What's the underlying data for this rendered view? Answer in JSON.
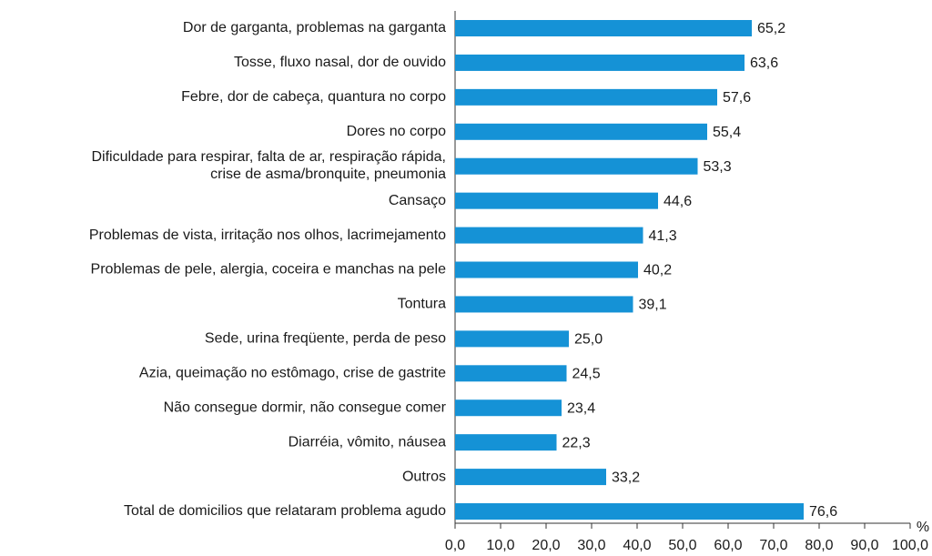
{
  "chart_data": {
    "type": "bar",
    "orientation": "horizontal",
    "categories": [
      "Dor de garganta, problemas na garganta",
      "Tosse, fluxo nasal, dor de ouvido",
      "Febre, dor de cabeça, quantura no corpo",
      "Dores no corpo",
      "Dificuldade para respirar, falta de ar, respiração rápida,\ncrise de asma/bronquite, pneumonia",
      "Cansaço",
      "Problemas de vista, irritação nos olhos, lacrimejamento",
      "Problemas de pele, alergia, coceira e manchas na pele",
      "Tontura",
      "Sede, urina freqüente, perda de peso",
      "Azia, queimação no estômago, crise de gastrite",
      "Não consegue dormir, não consegue comer",
      "Diarréia, vômito, náusea",
      "Outros",
      "Total de domicilios que relataram problema agudo"
    ],
    "values": [
      65.2,
      63.6,
      57.6,
      55.4,
      53.3,
      44.6,
      41.3,
      40.2,
      39.1,
      25.0,
      24.5,
      23.4,
      22.3,
      33.2,
      76.6
    ],
    "value_labels": [
      "65,2",
      "63,6",
      "57,6",
      "55,4",
      "53,3",
      "44,6",
      "41,3",
      "40,2",
      "39,1",
      "25,0",
      "24,5",
      "23,4",
      "22,3",
      "33,2",
      "76,6"
    ],
    "color": "#1592d6",
    "xlabel": "%",
    "xlim": [
      0,
      100
    ],
    "xticks": [
      {
        "value": 0,
        "label": "0,0"
      },
      {
        "value": 10,
        "label": "10,0"
      },
      {
        "value": 20,
        "label": "20,0"
      },
      {
        "value": 30,
        "label": "30,0"
      },
      {
        "value": 40,
        "label": "40,0"
      },
      {
        "value": 50,
        "label": "50,0"
      },
      {
        "value": 60,
        "label": "60,0"
      },
      {
        "value": 70,
        "label": "70,0"
      },
      {
        "value": 80,
        "label": "80,0"
      },
      {
        "value": 90,
        "label": "90,0"
      },
      {
        "value": 100,
        "label": "100,0"
      }
    ]
  }
}
